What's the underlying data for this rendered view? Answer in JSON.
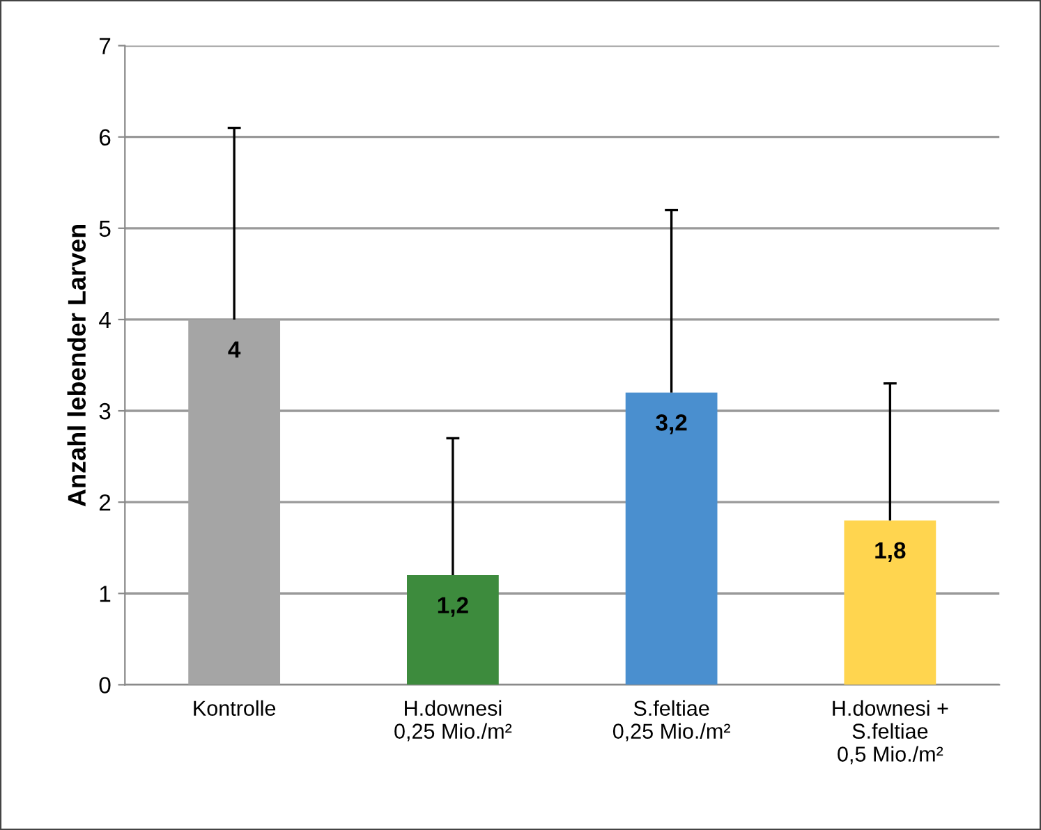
{
  "chart_data": {
    "type": "bar",
    "ylabel": "Anzahl lebender Larven",
    "categories": [
      "Kontrolle",
      "H.downesi\n0,25 Mio./m²",
      "S.feltiae\n0,25 Mio./m²",
      "H.downesi +\nS.feltiae\n0,5 Mio./m²"
    ],
    "values": [
      4,
      1.2,
      3.2,
      1.8
    ],
    "colors": [
      "#a5a5a5",
      "#3d8b3d",
      "#4a8fcf",
      "#ffd54f"
    ],
    "errors": [
      [
        4,
        6.1
      ],
      [
        1.2,
        2.7
      ],
      [
        3.2,
        5.2
      ],
      [
        1.8,
        3.3
      ]
    ],
    "value_labels": [
      "4",
      "1,2",
      "3,2",
      "1,8"
    ],
    "ylim": [
      0,
      7
    ],
    "yticks": [
      0,
      1,
      2,
      3,
      4,
      5,
      6,
      7
    ],
    "grid": "y"
  }
}
